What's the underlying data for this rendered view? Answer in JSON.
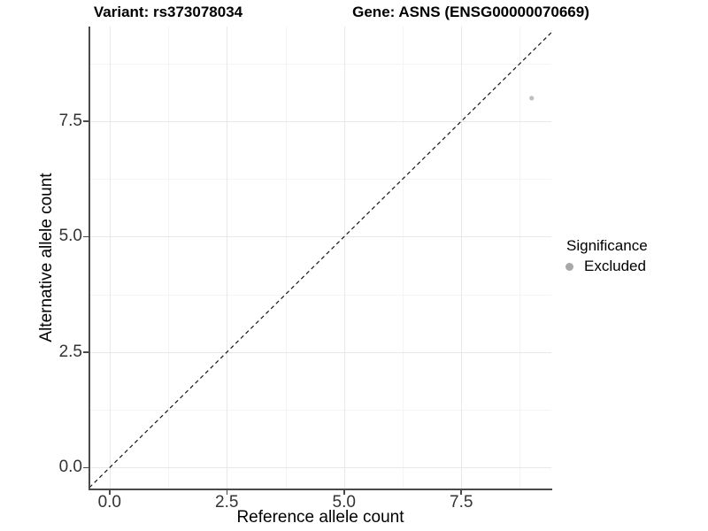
{
  "chart_data": {
    "type": "scatter",
    "title": {
      "left": "Variant: rs373078034",
      "right": "Gene: ASNS (ENSG00000070669)"
    },
    "xlabel": "Reference allele count",
    "ylabel": "Alternative allele count",
    "xlim": [
      -0.43,
      9.42
    ],
    "ylim": [
      -0.47,
      9.55
    ],
    "x_major_ticks": [
      0,
      2.5,
      5,
      7.5
    ],
    "x_tick_labels": [
      "0.0",
      "2.5",
      "5.0",
      "7.5"
    ],
    "x_minor_ticks": [
      1.25,
      3.75,
      6.25,
      8.75
    ],
    "y_major_ticks": [
      0,
      2.5,
      5,
      7.5
    ],
    "y_tick_labels": [
      "0.0",
      "2.5",
      "5.0",
      "7.5"
    ],
    "y_minor_ticks": [
      1.25,
      3.75,
      6.25,
      8.75
    ],
    "grid": "major+minor",
    "points": [
      {
        "x": 9,
        "y": 8,
        "significance": "Excluded"
      }
    ],
    "reference_line": {
      "type": "identity",
      "style": "dashed"
    },
    "legend": {
      "title": "Significance",
      "position": "right",
      "entries": [
        {
          "label": "Excluded",
          "marker": "circle",
          "color": "#a8a8a8"
        }
      ]
    },
    "colors": {
      "point": "#bfbfbf",
      "legend_marker": "#a8a8a8",
      "grid_major": "#e8e8e8",
      "grid_minor": "#f4f4f4",
      "axis_line": "#4a4a4a",
      "dashed_line": "#161616"
    }
  }
}
